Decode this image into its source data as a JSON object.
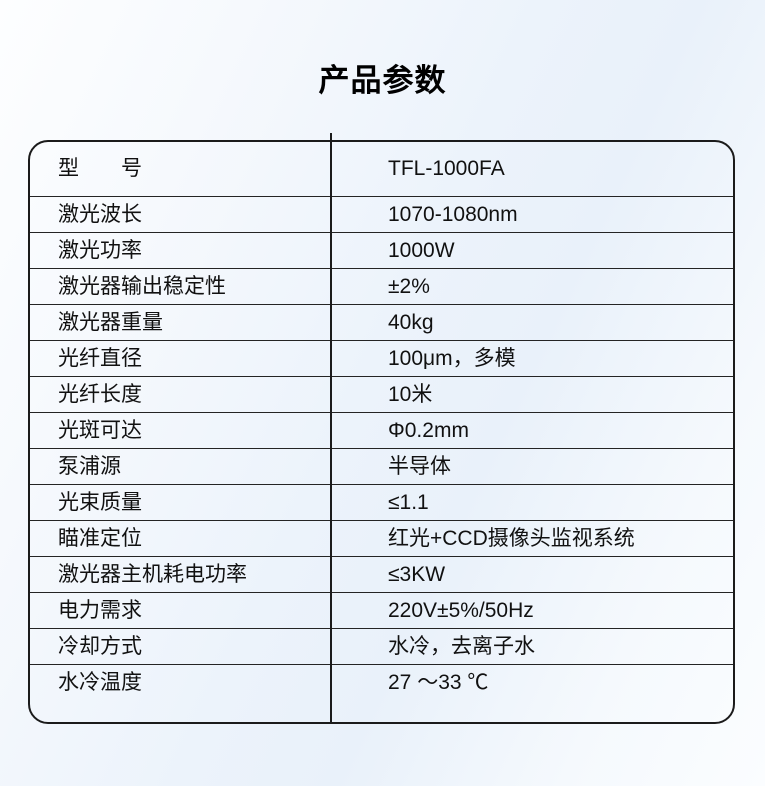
{
  "page": {
    "title": "产品参数"
  },
  "colors": {
    "background_tint": "#e9f1fa",
    "background_light": "#fdfeff",
    "border": "#1b1b1b",
    "text": "#111111"
  },
  "table": {
    "columns": [
      "parameter",
      "value"
    ],
    "rows": [
      {
        "label": "型　　号",
        "value": "TFL-1000FA"
      },
      {
        "label": "激光波长",
        "value": "1070-1080nm"
      },
      {
        "label": "激光功率",
        "value": "1000W"
      },
      {
        "label": "激光器输出稳定性",
        "value": "±2%"
      },
      {
        "label": "激光器重量",
        "value": "40kg"
      },
      {
        "label": "光纤直径",
        "value": "100μm，多模"
      },
      {
        "label": "光纤长度",
        "value": "10米"
      },
      {
        "label": "光斑可达",
        "value": "Φ0.2mm"
      },
      {
        "label": "泵浦源",
        "value": "半导体"
      },
      {
        "label": "光束质量",
        "value": "≤1.1"
      },
      {
        "label": "瞄准定位",
        "value": "红光+CCD摄像头监视系统"
      },
      {
        "label": "激光器主机耗电功率",
        "value": "≤3KW"
      },
      {
        "label": "电力需求",
        "value": "220V±5%/50Hz"
      },
      {
        "label": "冷却方式",
        "value": "水冷，去离子水"
      },
      {
        "label": "水冷温度",
        "value": "27 ～33 ℃"
      }
    ]
  }
}
